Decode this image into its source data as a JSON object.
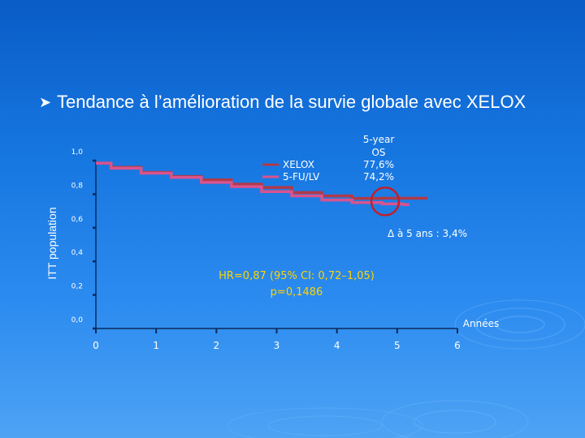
{
  "slide": {
    "bullet": "Tendance à l’amélioration de la survie globale avec XELOX"
  },
  "chart_data": {
    "type": "line",
    "ylabel": "ITT population",
    "xlabel": "Années",
    "x_ticks": [
      "0",
      "1",
      "2",
      "3",
      "4",
      "5",
      "6"
    ],
    "y_ticks": [
      "0,0",
      "0,2",
      "0,4",
      "0,6",
      "0,8",
      "1,0"
    ],
    "xlim": [
      0,
      6
    ],
    "ylim": [
      0,
      1.0
    ],
    "series": [
      {
        "name": "XELOX",
        "color": "#b03a48",
        "x": [
          0,
          0.5,
          1,
          1.5,
          2,
          2.5,
          3,
          3.5,
          4,
          4.5,
          5,
          5.5
        ],
        "y": [
          0.985,
          0.96,
          0.93,
          0.905,
          0.885,
          0.86,
          0.84,
          0.81,
          0.79,
          0.775,
          0.776,
          0.776
        ]
      },
      {
        "name": "5-FU/LV",
        "color": "#d8548e",
        "x": [
          0,
          0.5,
          1,
          1.5,
          2,
          2.5,
          3,
          3.5,
          4,
          4.5,
          5,
          5.2
        ],
        "y": [
          0.985,
          0.955,
          0.925,
          0.9,
          0.87,
          0.845,
          0.815,
          0.79,
          0.765,
          0.75,
          0.742,
          0.738
        ]
      }
    ],
    "os_header": "5-year OS",
    "os_values": [
      "77,6%",
      "74,2%"
    ],
    "delta": "Δ à 5 ans : 3,4%",
    "hr_text": "HR=0,87 (95% CI: 0,72–1,05)",
    "p_text": "p=0,1486",
    "highlight_year": 4.8
  }
}
